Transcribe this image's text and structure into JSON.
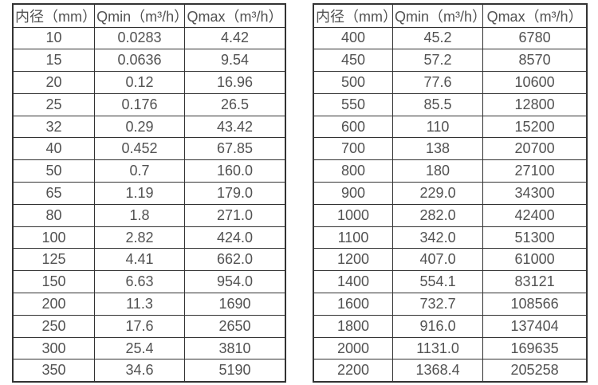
{
  "colors": {
    "background": "#ffffff",
    "border": "#333333",
    "text": "#525252"
  },
  "tables": [
    {
      "name": "flow-spec-small-diameters",
      "headers": [
        "内径（mm）",
        "Qmin（m³/h）",
        "Qmax（m³/h）"
      ],
      "rows": [
        [
          "10",
          "0.0283",
          "4.42"
        ],
        [
          "15",
          "0.0636",
          "9.54"
        ],
        [
          "20",
          "0.12",
          "16.96"
        ],
        [
          "25",
          "0.176",
          "26.5"
        ],
        [
          "32",
          "0.29",
          "43.42"
        ],
        [
          "40",
          "0.452",
          "67.85"
        ],
        [
          "50",
          "0.7",
          "160.0"
        ],
        [
          "65",
          "1.19",
          "179.0"
        ],
        [
          "80",
          "1.8",
          "271.0"
        ],
        [
          "100",
          "2.82",
          "424.0"
        ],
        [
          "125",
          "4.41",
          "662.0"
        ],
        [
          "150",
          "6.63",
          "954.0"
        ],
        [
          "200",
          "11.3",
          "1690"
        ],
        [
          "250",
          "17.6",
          "2650"
        ],
        [
          "300",
          "25.4",
          "3810"
        ],
        [
          "350",
          "34.6",
          "5190"
        ]
      ]
    },
    {
      "name": "flow-spec-large-diameters",
      "headers": [
        "内径（mm）",
        "Qmin（m³/h）",
        "Qmax（m³/h）"
      ],
      "rows": [
        [
          "400",
          "45.2",
          "6780"
        ],
        [
          "450",
          "57.2",
          "8570"
        ],
        [
          "500",
          "77.6",
          "10600"
        ],
        [
          "550",
          "85.5",
          "12800"
        ],
        [
          "600",
          "110",
          "15200"
        ],
        [
          "700",
          "138",
          "20700"
        ],
        [
          "800",
          "180",
          "27100"
        ],
        [
          "900",
          "229.0",
          "34300"
        ],
        [
          "1000",
          "282.0",
          "42400"
        ],
        [
          "1100",
          "342.0",
          "51300"
        ],
        [
          "1200",
          "407.0",
          "61000"
        ],
        [
          "1400",
          "554.1",
          "83121"
        ],
        [
          "1600",
          "732.7",
          "108566"
        ],
        [
          "1800",
          "916.0",
          "137404"
        ],
        [
          "2000",
          "1131.0",
          "169635"
        ],
        [
          "2200",
          "1368.4",
          "205258"
        ]
      ]
    }
  ]
}
